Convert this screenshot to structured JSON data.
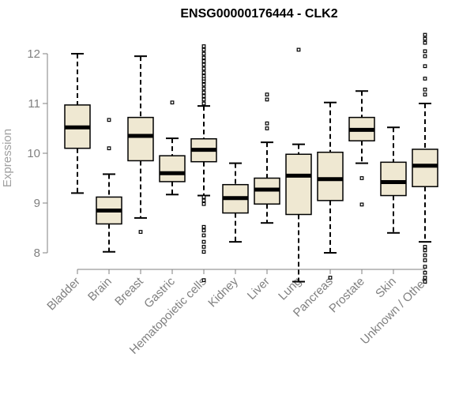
{
  "chart_data": {
    "type": "box",
    "title": "ENSG00000176444 - CLK2",
    "xlabel": "",
    "ylabel": "Expression",
    "ylim": [
      7.4,
      12.4
    ],
    "yticks": [
      8,
      9,
      10,
      11,
      12
    ],
    "ytick_labels": [
      "8",
      "9",
      "10",
      "11",
      "12"
    ],
    "box_fill": "#efe8d2",
    "median_color": "#000000",
    "categories": [
      "Bladder",
      "Brain",
      "Breast",
      "Gastric",
      "Hematopoietic cells",
      "Kidney",
      "Liver",
      "Lung",
      "Pancreas",
      "Prostate",
      "Skin",
      "Unknown / Other"
    ],
    "boxes": [
      {
        "name": "Bladder",
        "whisker_low": 9.2,
        "q1": 10.1,
        "median": 10.52,
        "q3": 10.97,
        "whisker_high": 12.0,
        "outliers": []
      },
      {
        "name": "Brain",
        "whisker_low": 8.02,
        "q1": 8.58,
        "median": 8.85,
        "q3": 9.12,
        "whisker_high": 9.58,
        "outliers": [
          10.1,
          10.67
        ]
      },
      {
        "name": "Breast",
        "whisker_low": 8.7,
        "q1": 9.85,
        "median": 10.35,
        "q3": 10.72,
        "whisker_high": 11.95,
        "outliers": [
          8.42
        ]
      },
      {
        "name": "Gastric",
        "whisker_low": 9.17,
        "q1": 9.43,
        "median": 9.6,
        "q3": 9.95,
        "whisker_high": 10.3,
        "outliers": [
          11.02
        ]
      },
      {
        "name": "Hematopoietic cells",
        "whisker_low": 9.15,
        "q1": 9.83,
        "median": 10.07,
        "q3": 10.29,
        "whisker_high": 10.95,
        "outliers": [
          7.45,
          8.02,
          8.12,
          8.22,
          8.35,
          8.45,
          8.52,
          8.98,
          9.05,
          9.12,
          11.0,
          11.08,
          11.15,
          11.22,
          11.3,
          11.38,
          11.45,
          11.5,
          11.55,
          11.62,
          11.7,
          11.78,
          11.85,
          11.92,
          12.0,
          12.08,
          12.15
        ]
      },
      {
        "name": "Kidney",
        "whisker_low": 8.22,
        "q1": 8.8,
        "median": 9.1,
        "q3": 9.37,
        "whisker_high": 9.8,
        "outliers": []
      },
      {
        "name": "Liver",
        "whisker_low": 8.6,
        "q1": 8.98,
        "median": 9.27,
        "q3": 9.5,
        "whisker_high": 10.22,
        "outliers": [
          10.5,
          10.6,
          11.08,
          11.18
        ]
      },
      {
        "name": "Lung",
        "whisker_low": 7.42,
        "q1": 8.77,
        "median": 9.55,
        "q3": 9.98,
        "whisker_high": 10.18,
        "outliers": [
          12.08
        ]
      },
      {
        "name": "Pancreas",
        "whisker_low": 8.0,
        "q1": 9.05,
        "median": 9.48,
        "q3": 10.02,
        "whisker_high": 11.02,
        "outliers": [
          7.5
        ]
      },
      {
        "name": "Prostate",
        "whisker_low": 9.8,
        "q1": 10.25,
        "median": 10.47,
        "q3": 10.72,
        "whisker_high": 11.25,
        "outliers": [
          8.97,
          9.5
        ]
      },
      {
        "name": "Skin",
        "whisker_low": 8.4,
        "q1": 9.15,
        "median": 9.42,
        "q3": 9.82,
        "whisker_high": 10.52,
        "outliers": []
      },
      {
        "name": "Unknown / Other",
        "whisker_low": 8.22,
        "q1": 9.33,
        "median": 9.75,
        "q3": 10.08,
        "whisker_high": 11.0,
        "outliers": [
          7.42,
          7.5,
          7.6,
          7.72,
          7.85,
          7.95,
          8.05,
          8.12,
          11.18,
          11.28,
          11.5,
          11.75,
          11.95,
          12.05,
          12.22,
          12.3,
          12.38
        ]
      }
    ]
  }
}
